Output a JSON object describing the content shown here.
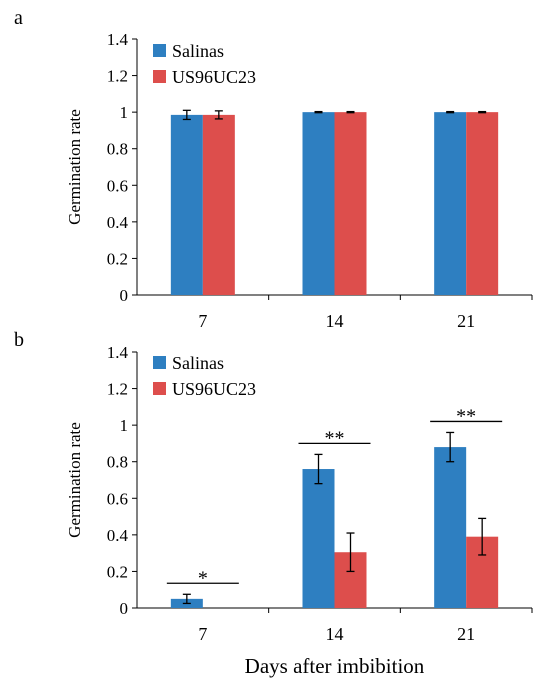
{
  "colors": {
    "salinas": "#2e7fc1",
    "us96uc23": "#dd4e4c"
  },
  "chart_data": [
    {
      "type": "bar",
      "panel_label": "a",
      "ylabel": "Germination rate",
      "xlabel": "",
      "categories": [
        "7",
        "14",
        "21"
      ],
      "ylim": [
        0,
        1.4
      ],
      "yticks": [
        "0",
        "0.2",
        "0.4",
        "0.6",
        "0.8",
        "1",
        "1.2",
        "1.4"
      ],
      "legend_position": "top-left",
      "grid": false,
      "series": [
        {
          "name": "Salinas",
          "values": [
            0.985,
            1.0,
            1.0
          ],
          "errors": [
            0.025,
            0.003,
            0.003
          ]
        },
        {
          "name": "US96UC23",
          "values": [
            0.985,
            1.0,
            1.0
          ],
          "errors": [
            0.022,
            0.003,
            0.003
          ]
        }
      ],
      "significance": [
        "",
        "",
        ""
      ]
    },
    {
      "type": "bar",
      "panel_label": "b",
      "ylabel": "Germination rate",
      "xlabel": "Days after imbibition",
      "categories": [
        "7",
        "14",
        "21"
      ],
      "ylim": [
        0,
        1.4
      ],
      "yticks": [
        "0",
        "0.2",
        "0.4",
        "0.6",
        "0.8",
        "1",
        "1.2",
        "1.4"
      ],
      "legend_position": "top-left",
      "grid": false,
      "series": [
        {
          "name": "Salinas",
          "values": [
            0.05,
            0.76,
            0.88
          ],
          "errors": [
            0.025,
            0.08,
            0.08
          ]
        },
        {
          "name": "US96UC23",
          "values": [
            0.0,
            0.305,
            0.39
          ],
          "errors": [
            0.0,
            0.105,
            0.1
          ]
        }
      ],
      "significance": [
        "*",
        "**",
        "**"
      ]
    }
  ]
}
